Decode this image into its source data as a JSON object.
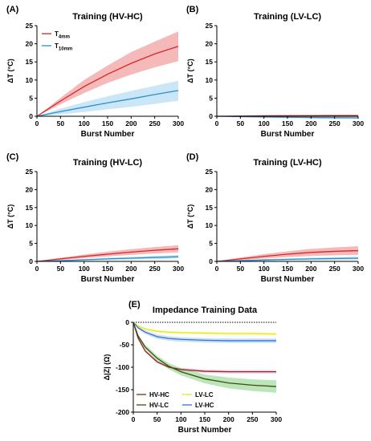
{
  "chart_data": [
    {
      "id": "A",
      "type": "line",
      "panel_label": "(A)",
      "title": "Training (HV-HC)",
      "xlabel": "Burst Number",
      "ylabel": "ΔT (°C)",
      "xlim": [
        0,
        300
      ],
      "ylim": [
        0,
        25
      ],
      "xticks": [
        0,
        50,
        100,
        150,
        200,
        250,
        300
      ],
      "yticks": [
        0,
        5,
        10,
        15,
        20,
        25
      ],
      "baseline": 0,
      "legend_position": "top-left",
      "series": [
        {
          "name": "T4mm",
          "name_main": "T",
          "name_sub": "4mm",
          "color": "#d62728",
          "band_color": "#ef8a8a",
          "x": [
            0,
            50,
            100,
            150,
            200,
            250,
            300
          ],
          "y": [
            0,
            4.2,
            8.2,
            11.6,
            14.6,
            17.2,
            19.3
          ],
          "lower": [
            0,
            3.3,
            6.4,
            9.2,
            11.5,
            13.5,
            15.2
          ],
          "upper": [
            0,
            5.1,
            10.0,
            14.0,
            17.7,
            20.6,
            23.4
          ]
        },
        {
          "name": "T10mm",
          "name_main": "T",
          "name_sub": "10mm",
          "color": "#2a8fc9",
          "band_color": "#a9d6f0",
          "x": [
            0,
            50,
            100,
            150,
            200,
            250,
            300
          ],
          "y": [
            0,
            1.3,
            2.5,
            3.7,
            4.8,
            6.0,
            7.1
          ],
          "lower": [
            0,
            0.5,
            1.2,
            1.9,
            2.6,
            3.4,
            4.3
          ],
          "upper": [
            0,
            2.1,
            3.9,
            5.5,
            7.0,
            8.4,
            9.8
          ]
        }
      ]
    },
    {
      "id": "B",
      "type": "line",
      "panel_label": "(B)",
      "title": "Training (LV-LC)",
      "xlabel": "Burst Number",
      "ylabel": "ΔT (°C)",
      "xlim": [
        0,
        300
      ],
      "ylim": [
        0,
        25
      ],
      "xticks": [
        0,
        50,
        100,
        150,
        200,
        250,
        300
      ],
      "yticks": [
        0,
        5,
        10,
        15,
        20,
        25
      ],
      "baseline": 0,
      "series": [
        {
          "color": "#d62728",
          "band_color": "#ef8a8a",
          "x": [
            0,
            50,
            100,
            150,
            200,
            250,
            300
          ],
          "y": [
            0,
            0.05,
            0.1,
            0.12,
            0.14,
            0.15,
            0.15
          ],
          "lower": [
            0,
            -0.1,
            -0.15,
            -0.15,
            -0.15,
            -0.15,
            -0.15
          ],
          "upper": [
            0,
            0.2,
            0.35,
            0.4,
            0.42,
            0.45,
            0.45
          ]
        },
        {
          "color": "#2a8fc9",
          "band_color": "#a9d6f0",
          "x": [
            0,
            50,
            100,
            150,
            200,
            250,
            300
          ],
          "y": [
            0,
            -0.1,
            -0.2,
            -0.28,
            -0.35,
            -0.4,
            -0.45
          ],
          "lower": [
            0,
            -0.25,
            -0.4,
            -0.5,
            -0.6,
            -0.65,
            -0.7
          ],
          "upper": [
            0,
            0.05,
            0.0,
            -0.06,
            -0.1,
            -0.15,
            -0.2
          ]
        }
      ]
    },
    {
      "id": "C",
      "type": "line",
      "panel_label": "(C)",
      "title": "Training (HV-LC)",
      "xlabel": "Burst Number",
      "ylabel": "ΔT (°C)",
      "xlim": [
        0,
        300
      ],
      "ylim": [
        0,
        25
      ],
      "xticks": [
        0,
        50,
        100,
        150,
        200,
        250,
        300
      ],
      "yticks": [
        0,
        5,
        10,
        15,
        20,
        25
      ],
      "baseline": 0,
      "series": [
        {
          "color": "#d62728",
          "band_color": "#ef8a8a",
          "x": [
            0,
            50,
            100,
            150,
            200,
            250,
            300
          ],
          "y": [
            0,
            0.7,
            1.4,
            2.0,
            2.6,
            3.1,
            3.5
          ],
          "lower": [
            0,
            0.4,
            0.9,
            1.4,
            1.8,
            2.2,
            2.5
          ],
          "upper": [
            0,
            1.0,
            1.9,
            2.7,
            3.4,
            4.0,
            4.5
          ]
        },
        {
          "color": "#2a8fc9",
          "band_color": "#a9d6f0",
          "x": [
            0,
            50,
            100,
            150,
            200,
            250,
            300
          ],
          "y": [
            0,
            0.2,
            0.45,
            0.7,
            0.9,
            1.1,
            1.3
          ],
          "lower": [
            0,
            0.05,
            0.2,
            0.35,
            0.5,
            0.65,
            0.8
          ],
          "upper": [
            0,
            0.35,
            0.7,
            1.05,
            1.3,
            1.55,
            1.8
          ]
        }
      ]
    },
    {
      "id": "D",
      "type": "line",
      "panel_label": "(D)",
      "title": "Training (LV-HC)",
      "xlabel": "Burst Number",
      "ylabel": "ΔT (°C)",
      "xlim": [
        0,
        300
      ],
      "ylim": [
        0,
        25
      ],
      "xticks": [
        0,
        50,
        100,
        150,
        200,
        250,
        300
      ],
      "yticks": [
        0,
        5,
        10,
        15,
        20,
        25
      ],
      "baseline": 0,
      "series": [
        {
          "color": "#d62728",
          "band_color": "#ef8a8a",
          "x": [
            0,
            50,
            100,
            150,
            200,
            250,
            300
          ],
          "y": [
            0,
            0.7,
            1.4,
            2.0,
            2.5,
            2.8,
            3.0
          ],
          "lower": [
            0,
            0.3,
            0.8,
            1.2,
            1.5,
            1.7,
            1.8
          ],
          "upper": [
            0,
            1.1,
            2.0,
            2.8,
            3.5,
            3.9,
            4.2
          ]
        },
        {
          "color": "#2a8fc9",
          "band_color": "#a9d6f0",
          "x": [
            0,
            50,
            100,
            150,
            200,
            250,
            300
          ],
          "y": [
            0,
            0.2,
            0.4,
            0.55,
            0.7,
            0.8,
            0.9
          ],
          "lower": [
            0,
            0.05,
            0.15,
            0.25,
            0.35,
            0.4,
            0.45
          ],
          "upper": [
            0,
            0.35,
            0.65,
            0.85,
            1.05,
            1.2,
            1.35
          ]
        }
      ]
    },
    {
      "id": "E",
      "type": "line",
      "panel_label": "(E)",
      "title": "Impedance Training Data",
      "xlabel": "Burst Number",
      "ylabel": "Δ|Z| (Ω)",
      "xlim": [
        0,
        300
      ],
      "ylim": [
        -200,
        0
      ],
      "xticks": [
        0,
        50,
        100,
        150,
        200,
        250,
        300
      ],
      "yticks": [
        0,
        -50,
        -100,
        -150,
        -200
      ],
      "baseline": 0,
      "legend_position": "bottom-left",
      "series": [
        {
          "name": "HV-HC",
          "color": "#8b2a1a",
          "band_color": "#f2b8e0",
          "x": [
            0,
            10,
            25,
            50,
            75,
            100,
            150,
            200,
            250,
            300
          ],
          "y": [
            0,
            -35,
            -64,
            -88,
            -100,
            -105,
            -109,
            -110,
            -110,
            -110
          ],
          "lower": [
            0,
            -37,
            -67,
            -91,
            -103,
            -109,
            -113,
            -114,
            -114,
            -114
          ],
          "upper": [
            0,
            -33,
            -61,
            -85,
            -97,
            -101,
            -105,
            -106,
            -106,
            -106
          ]
        },
        {
          "name": "HV-LC",
          "color": "#3d4d12",
          "band_color": "#8fd68a",
          "x": [
            0,
            10,
            25,
            50,
            75,
            100,
            150,
            200,
            250,
            300
          ],
          "y": [
            0,
            -30,
            -55,
            -80,
            -98,
            -110,
            -126,
            -135,
            -140,
            -143
          ],
          "lower": [
            0,
            -33,
            -60,
            -86,
            -105,
            -118,
            -136,
            -147,
            -153,
            -157
          ],
          "upper": [
            0,
            -27,
            -50,
            -74,
            -91,
            -102,
            -116,
            -123,
            -127,
            -129
          ]
        },
        {
          "name": "LV-LC",
          "color": "#e8e81a",
          "band_color": "#f6f6a0",
          "x": [
            0,
            10,
            25,
            50,
            75,
            100,
            150,
            200,
            250,
            300
          ],
          "y": [
            0,
            -8,
            -15,
            -20,
            -22,
            -23,
            -24,
            -25,
            -25,
            -26
          ],
          "lower": [
            0,
            -10,
            -18,
            -23,
            -25,
            -26,
            -27,
            -28,
            -28,
            -29
          ],
          "upper": [
            0,
            -6,
            -12,
            -17,
            -19,
            -20,
            -21,
            -22,
            -22,
            -23
          ]
        },
        {
          "name": "LV-HC",
          "color": "#3a6fd6",
          "band_color": "#a9cfee",
          "x": [
            0,
            10,
            25,
            50,
            75,
            100,
            150,
            200,
            250,
            300
          ],
          "y": [
            0,
            -12,
            -22,
            -32,
            -36,
            -38,
            -40,
            -41,
            -41,
            -41
          ],
          "lower": [
            0,
            -15,
            -26,
            -37,
            -41,
            -43,
            -45,
            -46,
            -46,
            -46
          ],
          "upper": [
            0,
            -9,
            -18,
            -27,
            -31,
            -33,
            -35,
            -36,
            -36,
            -36
          ]
        }
      ]
    }
  ]
}
